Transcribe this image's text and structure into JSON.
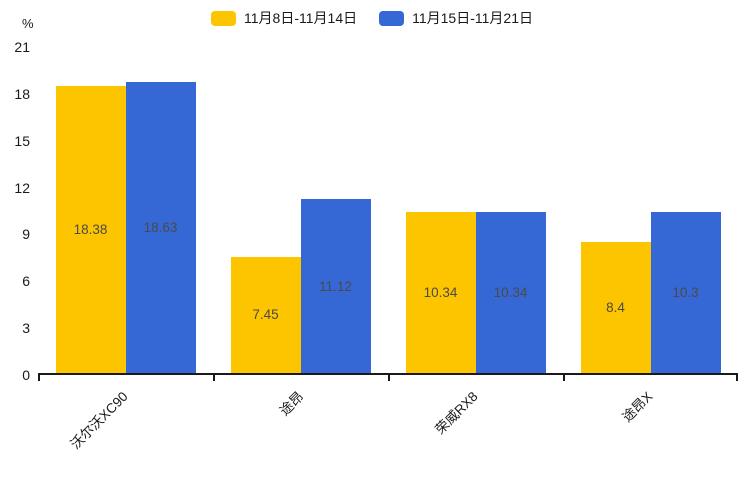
{
  "colors": {
    "series1": "#FDC500",
    "series2": "#3568D4",
    "axis": "#1a1a1a",
    "value_label": "#4a4a4a"
  },
  "legend": {
    "items": [
      {
        "label": "11月8日-11月14日",
        "color": "#FDC500"
      },
      {
        "label": "11月15日-11月21日",
        "color": "#3568D4"
      }
    ]
  },
  "chart_data": {
    "type": "bar",
    "title": "",
    "xlabel": "",
    "ylabel": "%",
    "categories": [
      "沃尔沃XC90",
      "途昂",
      "荣威RX8",
      "途昂X"
    ],
    "series": [
      {
        "name": "11月8日-11月14日",
        "color": "#FDC500",
        "values": [
          18.38,
          7.45,
          10.34,
          8.4
        ],
        "value_labels": [
          "18.38",
          "7.45",
          "10.34",
          "8.4"
        ]
      },
      {
        "name": "11月15日-11月21日",
        "color": "#3568D4",
        "values": [
          18.63,
          11.12,
          10.34,
          10.3
        ],
        "value_labels": [
          "18.63",
          "11.12",
          "10.34",
          "10.3"
        ]
      }
    ],
    "ylim": [
      0,
      21
    ],
    "yticks": [
      0,
      3,
      6,
      9,
      12,
      15,
      18,
      21
    ],
    "grid": false,
    "legend_position": "top",
    "value_labels_position": "inside-center",
    "x_label_rotation_deg": 45
  }
}
